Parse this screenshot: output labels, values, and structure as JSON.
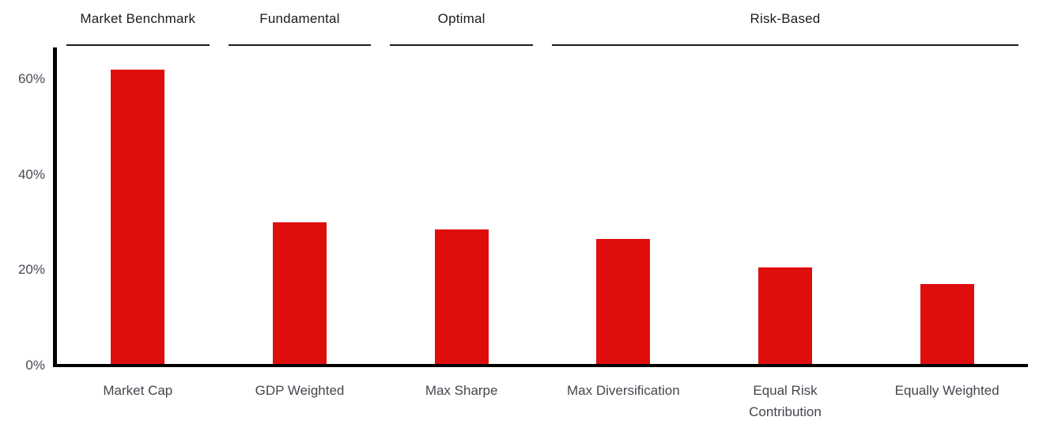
{
  "chart_data": {
    "type": "bar",
    "title": "",
    "xlabel": "",
    "ylabel": "",
    "unit": "%",
    "categories": [
      "Market Cap",
      "GDP Weighted",
      "Max Sharpe",
      "Max Diversification",
      "Equal Risk Contribution",
      "Equally Weighted"
    ],
    "category_lines": [
      [
        "Market Cap"
      ],
      [
        "GDP Weighted"
      ],
      [
        "Max Sharpe"
      ],
      [
        "Max Diversification"
      ],
      [
        "Equal Risk",
        "Contribution"
      ],
      [
        "Equally Weighted"
      ]
    ],
    "values": [
      62,
      30,
      28.5,
      26.5,
      20.5,
      17
    ],
    "yticks": [
      0,
      20,
      40,
      60
    ],
    "ytick_labels": [
      "0%",
      "20%",
      "40%",
      "60%"
    ],
    "ylim": [
      0,
      66.5
    ],
    "grid": false,
    "legend": null,
    "groups": [
      {
        "label": "Market Benchmark",
        "start": 0,
        "end": 0
      },
      {
        "label": "Fundamental",
        "start": 1,
        "end": 1
      },
      {
        "label": "Optimal",
        "start": 2,
        "end": 2
      },
      {
        "label": "Risk-Based",
        "start": 3,
        "end": 5
      }
    ]
  },
  "colors": {
    "bar": "#e00d0d",
    "axis": "#000000",
    "group_text": "#1c1c1c",
    "tick_text": "#4a4a55",
    "category_text": "#45454e"
  }
}
